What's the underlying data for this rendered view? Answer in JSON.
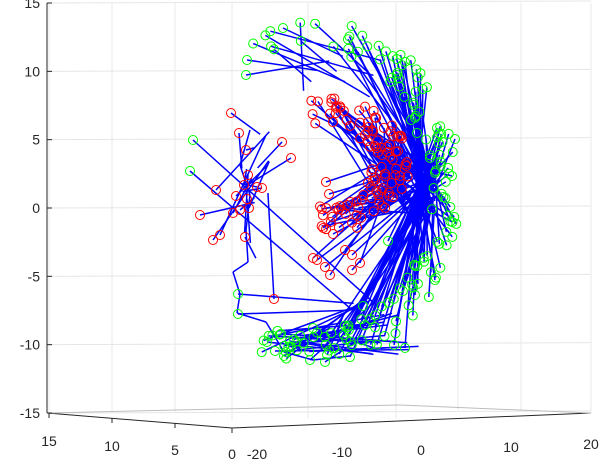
{
  "chart_data": {
    "type": "3d-line-scatter",
    "title": "",
    "view": "3-D rotated",
    "z_axis": {
      "ticks": [
        15,
        10,
        5,
        0,
        -5,
        -10,
        -15
      ],
      "tick_labels": [
        "15",
        "10",
        "5",
        "0",
        "-5",
        "-10",
        "-15"
      ],
      "range": [
        -15,
        15
      ]
    },
    "x_axis": {
      "ticks": [
        15,
        10,
        5,
        0
      ],
      "tick_labels": [
        "15",
        "10",
        "5",
        "0"
      ]
    },
    "y_axis": {
      "ticks": [
        -20,
        -10,
        0,
        10,
        20
      ],
      "tick_labels": [
        "-20",
        "-10",
        "0",
        "10",
        "20"
      ]
    },
    "grid": true,
    "series": [
      {
        "marker": "circle",
        "color": "#ff0000",
        "role": "red markers (inner, left arc)"
      },
      {
        "marker": "circle",
        "color": "#00ff00",
        "role": "green markers (outer, right arc)"
      },
      {
        "marker": "line",
        "color": "#0000ff",
        "role": "blue connecting segments"
      }
    ],
    "approx_structure": {
      "red_points_count": 150,
      "green_points_count": 180,
      "blue_segments_count": 320
    }
  }
}
